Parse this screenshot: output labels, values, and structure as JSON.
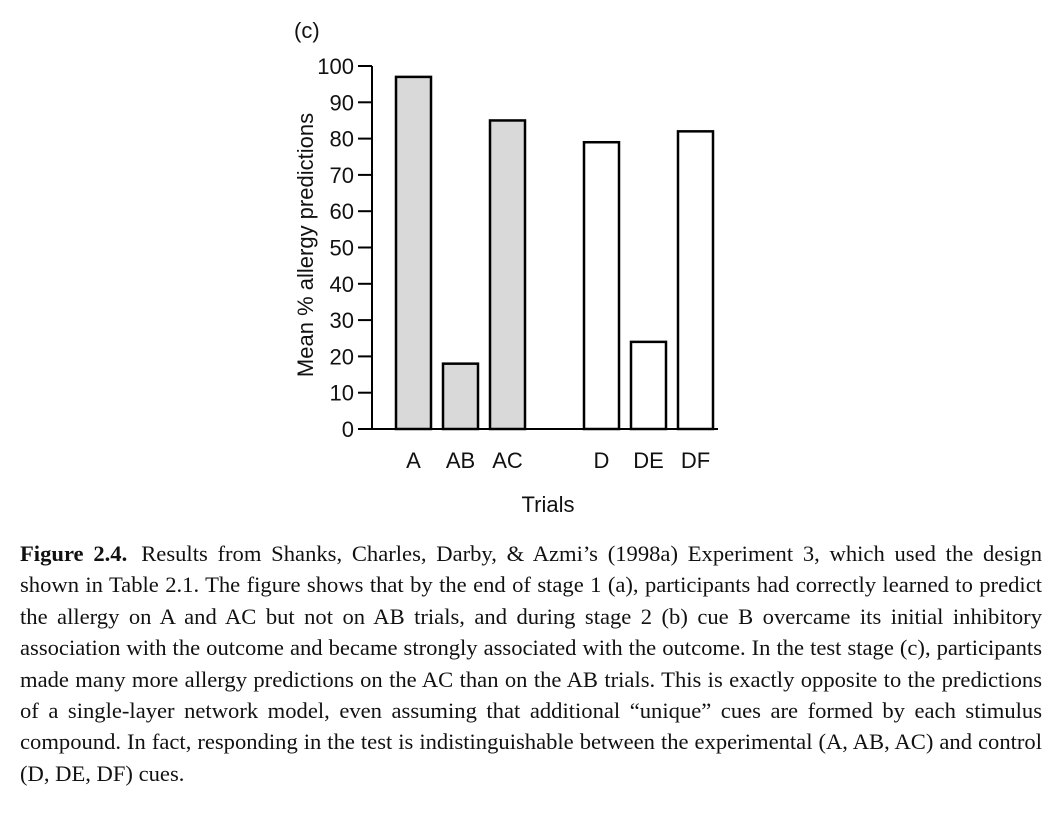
{
  "chart_data": {
    "type": "bar",
    "panel_label": "(c)",
    "categories": [
      "A",
      "AB",
      "AC",
      "D",
      "DE",
      "DF"
    ],
    "groups": [
      {
        "categories": [
          "A",
          "AB",
          "AC"
        ],
        "fill": "#d9d9d9"
      },
      {
        "categories": [
          "D",
          "DE",
          "DF"
        ],
        "fill": "#ffffff"
      }
    ],
    "values": [
      97,
      18,
      85,
      79,
      24,
      82
    ],
    "xlabel": "Trials",
    "ylabel": "Mean % allergy predictions",
    "ylim": [
      0,
      100
    ],
    "yticks": [
      0,
      10,
      20,
      30,
      40,
      50,
      60,
      70,
      80,
      90,
      100
    ],
    "grid": false,
    "colors": {
      "experimental": "#d9d9d9",
      "control": "#ffffff",
      "stroke": "#000000"
    }
  },
  "caption": {
    "label": "Figure 2.4.",
    "text": "Results from Shanks, Charles, Darby, & Azmi’s (1998a) Experiment 3, which used the design shown in Table 2.1. The figure shows that by the end of stage 1 (a), participants had correctly learned to predict the allergy on A and AC but not on AB trials, and during stage 2 (b) cue B overcame its initial inhibitory association with the outcome and became strongly associated with the outcome. In the test stage (c), participants made many more allergy predictions on the AC than on the AB trials. This is exactly opposite to the predictions of a single-layer network model, even assuming that additional “unique” cues are formed by each stimulus compound. In fact, responding in the test is indistinguishable between the experimental (A, AB, AC) and control (D, DE, DF) cues."
  }
}
